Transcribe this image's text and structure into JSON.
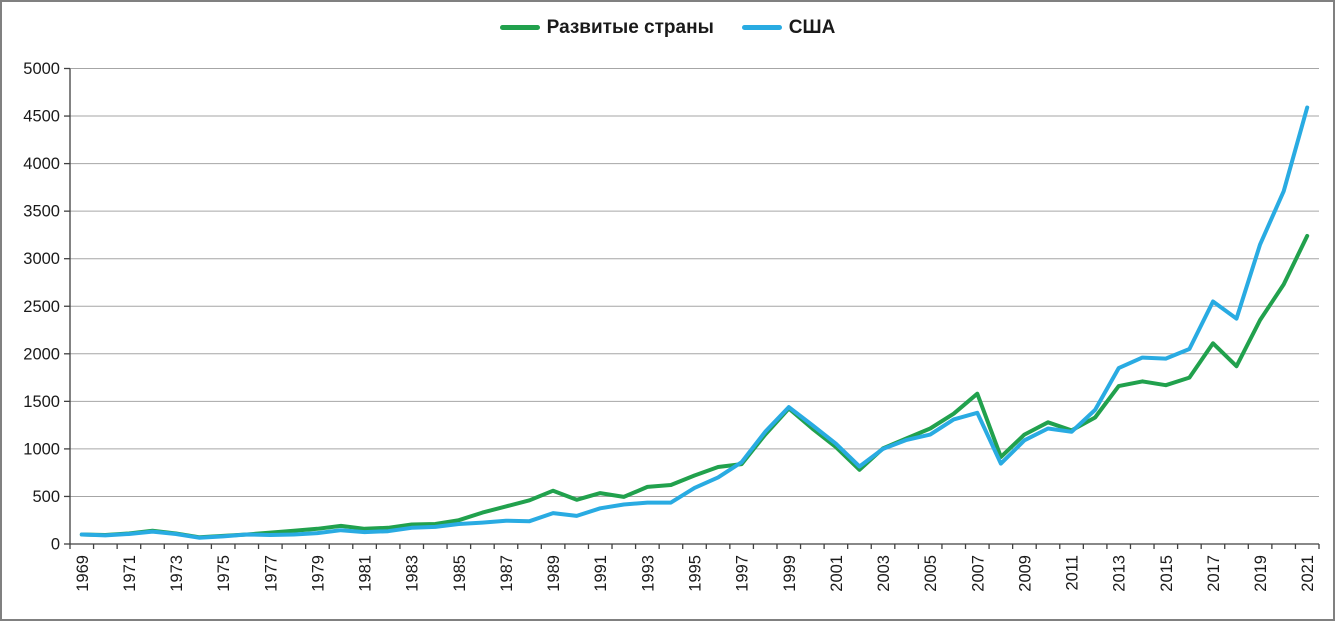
{
  "chart_data": {
    "type": "line",
    "title": "",
    "legend_position": "top",
    "grid": true,
    "x_label_every": 2,
    "x_tick_label_rotation": -90,
    "ylim": [
      0,
      5000
    ],
    "y_tick_step": 500,
    "x": [
      1969,
      1970,
      1971,
      1972,
      1973,
      1974,
      1975,
      1976,
      1977,
      1978,
      1979,
      1980,
      1981,
      1982,
      1983,
      1984,
      1985,
      1986,
      1987,
      1988,
      1989,
      1990,
      1991,
      1992,
      1993,
      1994,
      1995,
      1996,
      1997,
      1998,
      1999,
      2000,
      2001,
      2002,
      2003,
      2004,
      2005,
      2006,
      2007,
      2008,
      2009,
      2010,
      2011,
      2012,
      2013,
      2014,
      2015,
      2016,
      2017,
      2018,
      2019,
      2020,
      2021
    ],
    "series": [
      {
        "name": "Развитые страны",
        "color": "#21a14d",
        "values": [
          100,
          95,
          110,
          140,
          110,
          70,
          85,
          100,
          120,
          140,
          160,
          190,
          160,
          170,
          205,
          210,
          250,
          330,
          395,
          460,
          560,
          465,
          535,
          495,
          600,
          620,
          720,
          810,
          840,
          1150,
          1425,
          1215,
          1020,
          780,
          1005,
          1110,
          1215,
          1370,
          1580,
          915,
          1150,
          1280,
          1195,
          1330,
          1660,
          1710,
          1670,
          1750,
          2110,
          1870,
          2355,
          2730,
          3240
        ]
      },
      {
        "name": "США",
        "color": "#29abe2",
        "values": [
          100,
          90,
          105,
          130,
          105,
          65,
          80,
          100,
          95,
          100,
          115,
          145,
          125,
          135,
          170,
          180,
          210,
          225,
          245,
          240,
          325,
          295,
          375,
          415,
          435,
          435,
          590,
          700,
          860,
          1180,
          1440,
          1250,
          1055,
          815,
          1000,
          1095,
          1150,
          1310,
          1380,
          845,
          1090,
          1215,
          1180,
          1410,
          1850,
          1960,
          1950,
          2050,
          2550,
          2370,
          3150,
          3710,
          4590
        ]
      }
    ]
  },
  "colors": {
    "background": "#ffffff",
    "border": "#808080",
    "gridline": "#a6a6a6",
    "axis": "#404040",
    "tick_label": "#1a1a1a",
    "legend_text": "#1a1a1a"
  }
}
